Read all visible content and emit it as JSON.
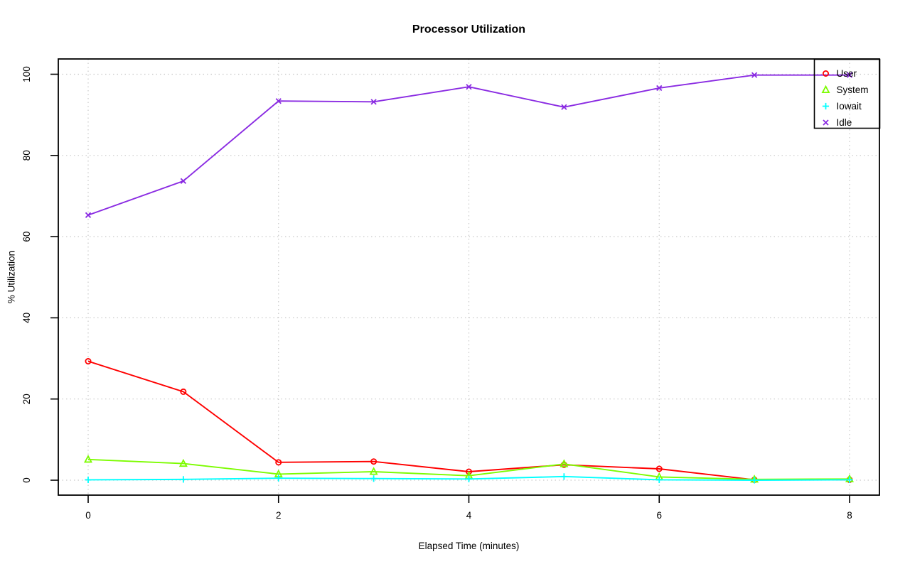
{
  "chart_data": {
    "type": "line",
    "title": "Processor Utilization",
    "xlabel": "Elapsed Time (minutes)",
    "ylabel": "% Utilization",
    "x": [
      0,
      1,
      2,
      3,
      4,
      5,
      6,
      7,
      8
    ],
    "x_ticks": [
      "0",
      "2",
      "4",
      "6",
      "8"
    ],
    "y_ticks": [
      "0",
      "20",
      "40",
      "60",
      "80",
      "100"
    ],
    "xlim": [
      0,
      8
    ],
    "ylim": [
      0,
      100
    ],
    "grid": "dotted",
    "grid_color": "#c9c9c9",
    "axis_color": "#000000",
    "legend_position": "top-right",
    "series": [
      {
        "name": "User",
        "color": "#ff0000",
        "marker": "circle",
        "values": [
          29.3,
          21.8,
          4.4,
          4.6,
          2.1,
          3.8,
          2.8,
          0.1,
          0.1
        ]
      },
      {
        "name": "System",
        "color": "#7cfc00",
        "marker": "triangle",
        "values": [
          5.1,
          4.1,
          1.5,
          2.1,
          1.1,
          4.0,
          0.8,
          0.2,
          0.3
        ]
      },
      {
        "name": "Iowait",
        "color": "#00ffff",
        "marker": "plus",
        "values": [
          0.1,
          0.2,
          0.5,
          0.4,
          0.3,
          0.9,
          0.1,
          0.0,
          0.1
        ]
      },
      {
        "name": "Idle",
        "color": "#8a2be2",
        "marker": "x",
        "values": [
          65.3,
          73.7,
          93.4,
          93.2,
          96.9,
          91.9,
          96.6,
          99.8,
          99.8
        ]
      }
    ]
  }
}
